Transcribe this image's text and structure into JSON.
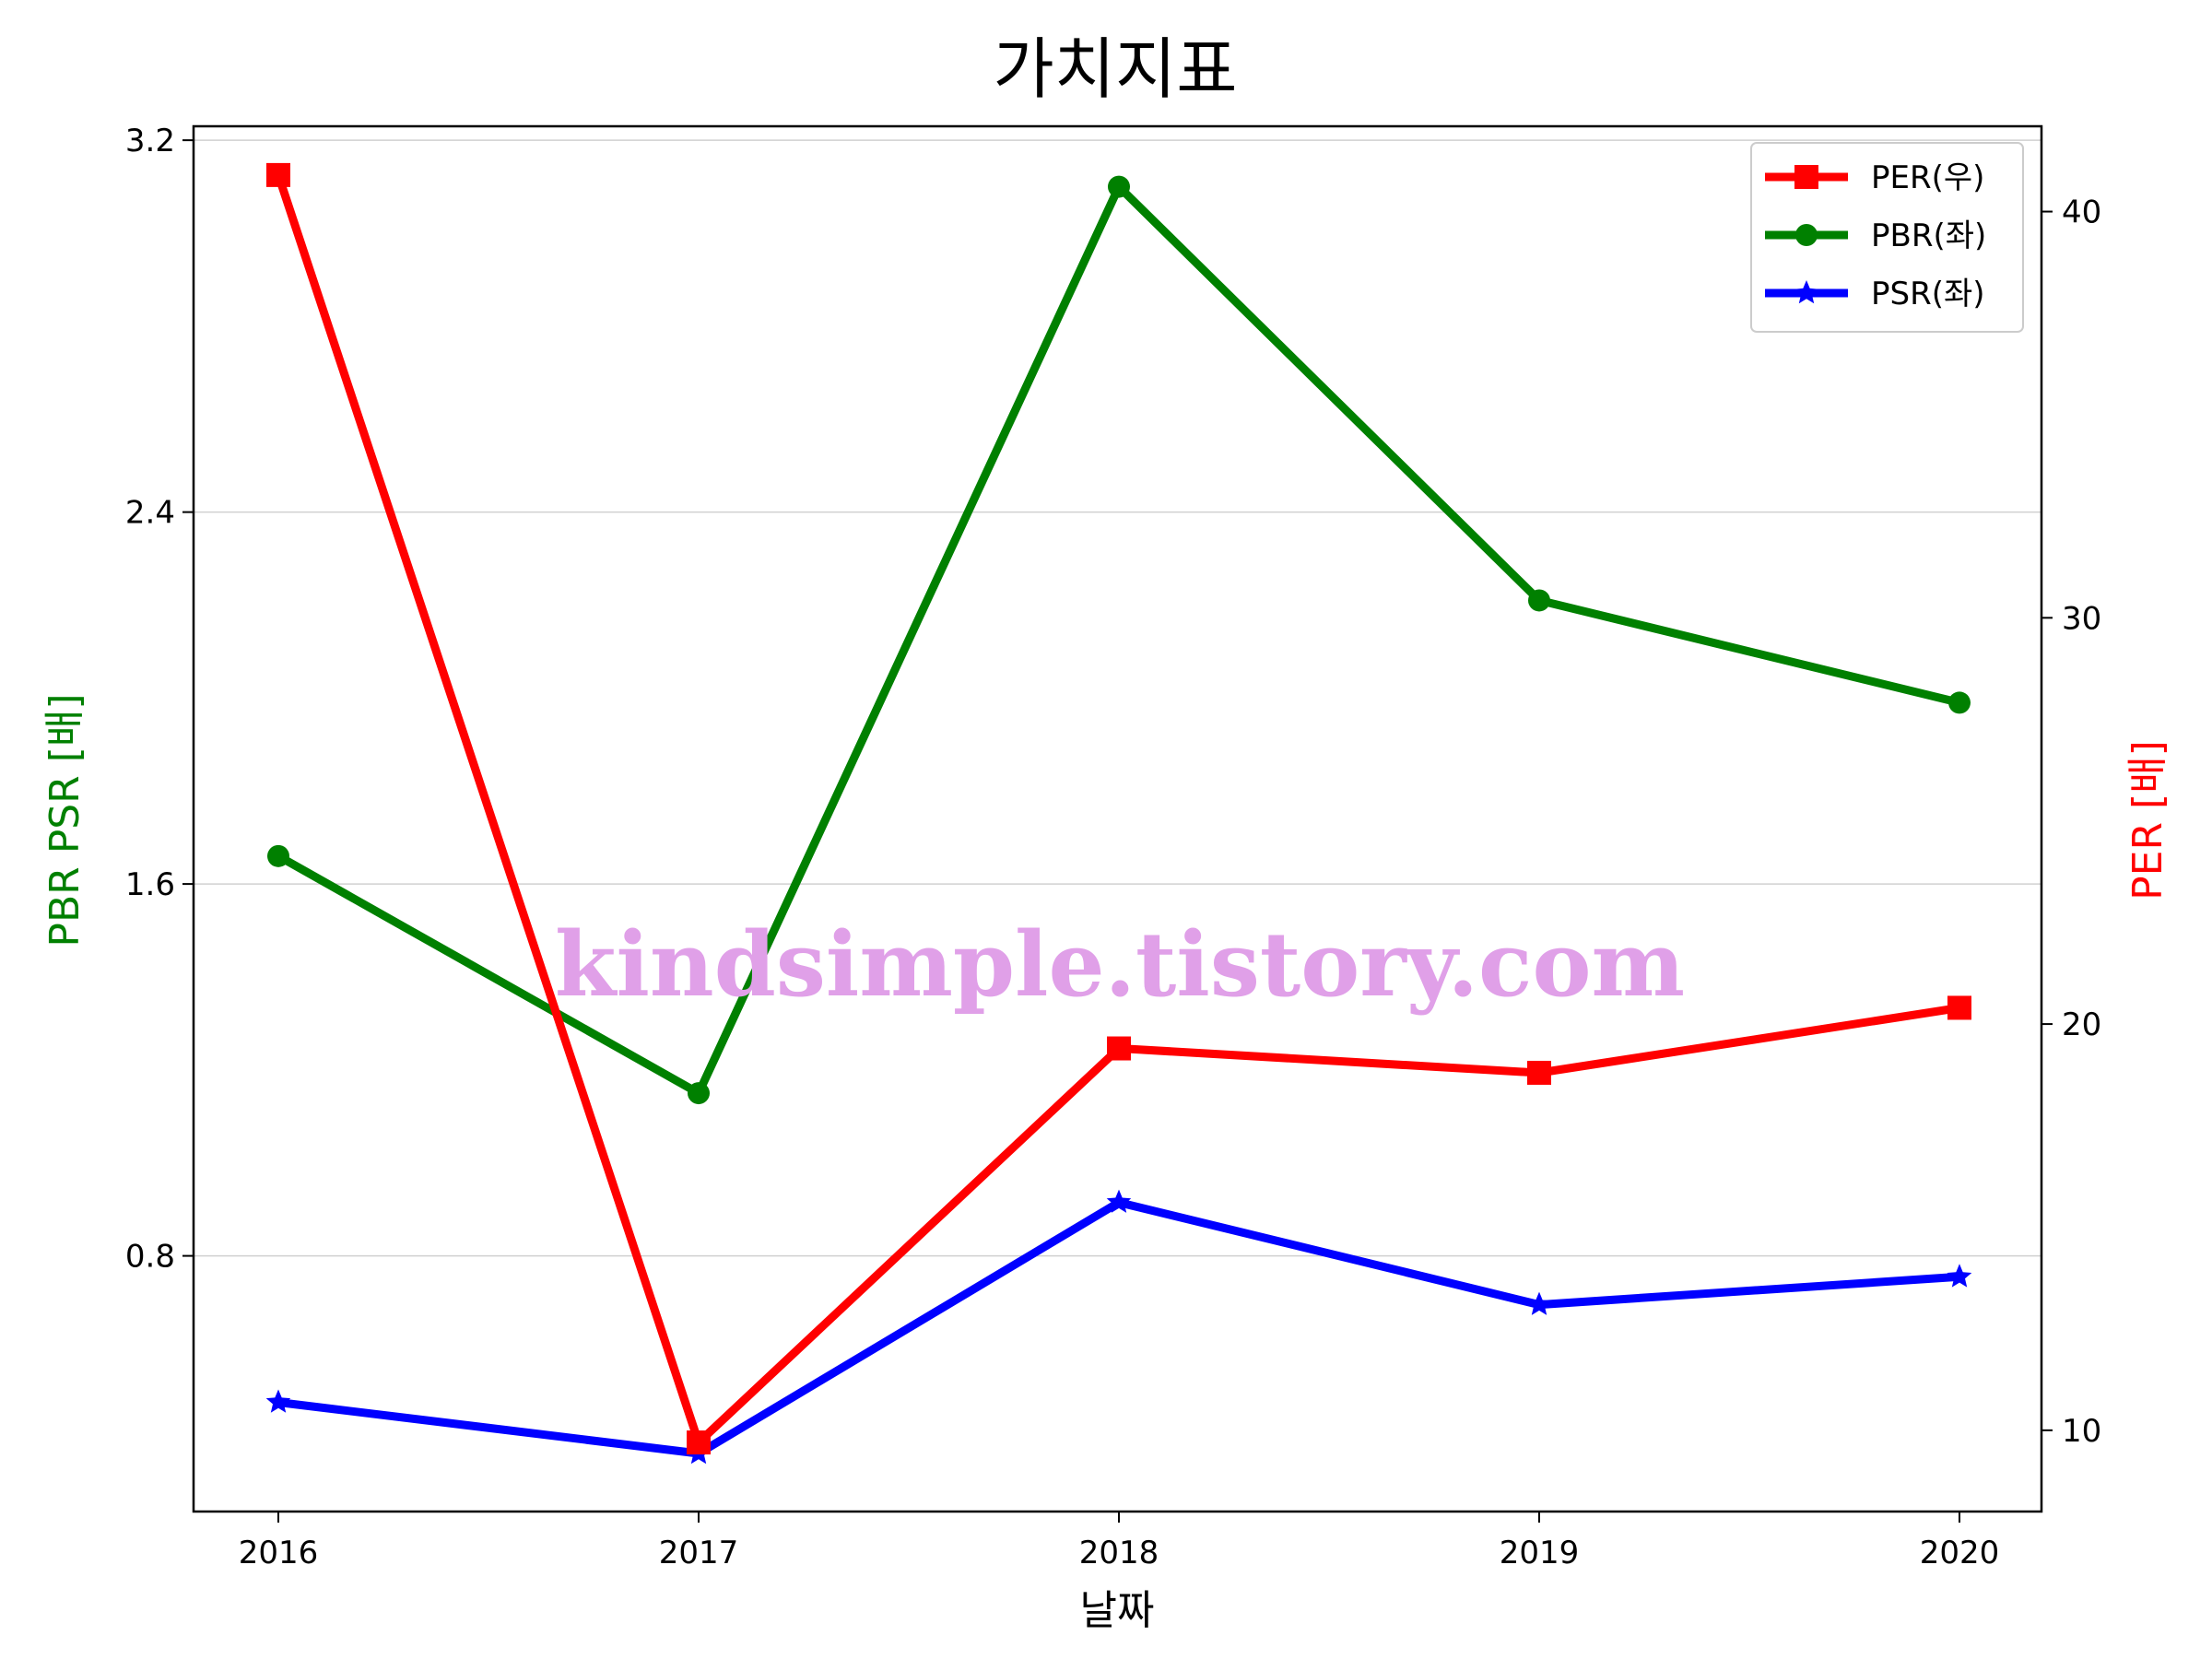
{
  "chart_data": {
    "type": "line",
    "title": "가치지표",
    "xlabel": "날짜",
    "ylabel_left": "PBR PSR [배]",
    "ylabel_right": "PER [배]",
    "categories": [
      "2016",
      "2017",
      "2018",
      "2019",
      "2020"
    ],
    "left_axis": {
      "ylim": [
        0.25,
        3.23
      ],
      "ticks": [
        0.8,
        1.6,
        2.4,
        3.2
      ],
      "tick_labels": [
        "0.8",
        "1.6",
        "2.4",
        "3.2"
      ]
    },
    "right_axis": {
      "ylim": [
        8.0,
        42.1
      ],
      "ticks": [
        10,
        20,
        30,
        40
      ],
      "tick_labels": [
        "10",
        "20",
        "30",
        "40"
      ]
    },
    "grid": "horizontal (left axis)",
    "legend_position": "top-right",
    "series": [
      {
        "name": "PER(우)",
        "axis": "right",
        "color": "#ff0000",
        "marker": "square",
        "values": [
          40.9,
          9.7,
          19.4,
          18.8,
          20.4
        ]
      },
      {
        "name": "PBR(좌)",
        "axis": "left",
        "color": "#008000",
        "marker": "circle",
        "values": [
          1.66,
          1.15,
          3.1,
          2.21,
          1.99
        ]
      },
      {
        "name": "PSR(좌)",
        "axis": "left",
        "color": "#0000ff",
        "marker": "star",
        "values": [
          0.485,
          0.375,
          0.915,
          0.695,
          0.755
        ]
      }
    ],
    "watermark": "kindsimple.tistory.com",
    "watermark_color": "#e0a0e8"
  }
}
